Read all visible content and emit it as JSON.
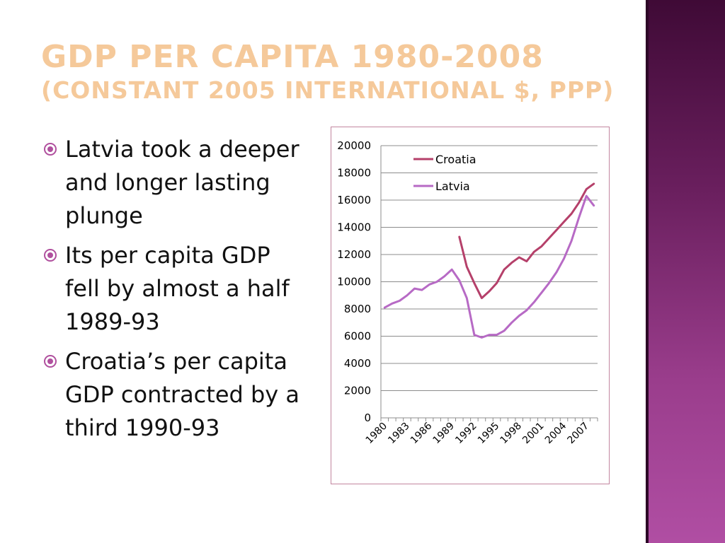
{
  "slide": {
    "title_line1": "GDP per capita 1980-2008",
    "title_line2": "(constant 2005 international $, PPP)",
    "bullets": [
      "Latvia took a deeper and longer lasting plunge",
      "Its per capita GDP fell by almost a half 1989-93",
      "Croatia’s per capita GDP contracted by a third 1990-93"
    ],
    "colors": {
      "title": "#f5c99a",
      "bullet": "#b0509e",
      "band": "#6a1f5e"
    }
  },
  "chart_data": {
    "type": "line",
    "title": "",
    "xlabel": "",
    "ylabel": "",
    "x": [
      1980,
      1981,
      1982,
      1983,
      1984,
      1985,
      1986,
      1987,
      1988,
      1989,
      1990,
      1991,
      1992,
      1993,
      1994,
      1995,
      1996,
      1997,
      1998,
      1999,
      2000,
      2001,
      2002,
      2003,
      2004,
      2005,
      2006,
      2007,
      2008
    ],
    "x_tick_labels": [
      "1980",
      "1983",
      "1986",
      "1989",
      "1992",
      "1995",
      "1998",
      "2001",
      "2004",
      "2007"
    ],
    "ylim": [
      0,
      20000
    ],
    "y_ticks": [
      0,
      2000,
      4000,
      6000,
      8000,
      10000,
      12000,
      14000,
      16000,
      18000,
      20000
    ],
    "grid": true,
    "legend_position": "top-center",
    "series": [
      {
        "name": "Croatia",
        "color": "#b5406a",
        "values": [
          null,
          null,
          null,
          null,
          null,
          null,
          null,
          null,
          null,
          null,
          13300,
          11100,
          9900,
          8800,
          9300,
          9900,
          10900,
          11400,
          11800,
          11500,
          12200,
          12600,
          13200,
          13800,
          14400,
          15000,
          15800,
          16800,
          17200
        ]
      },
      {
        "name": "Latvia",
        "color": "#b76ac5",
        "values": [
          8100,
          8400,
          8600,
          9000,
          9500,
          9400,
          9800,
          10000,
          10400,
          10900,
          10100,
          8800,
          6100,
          5900,
          6100,
          6100,
          6400,
          7000,
          7500,
          7900,
          8500,
          9200,
          9900,
          10700,
          11700,
          13000,
          14700,
          16300,
          15600
        ]
      }
    ]
  }
}
